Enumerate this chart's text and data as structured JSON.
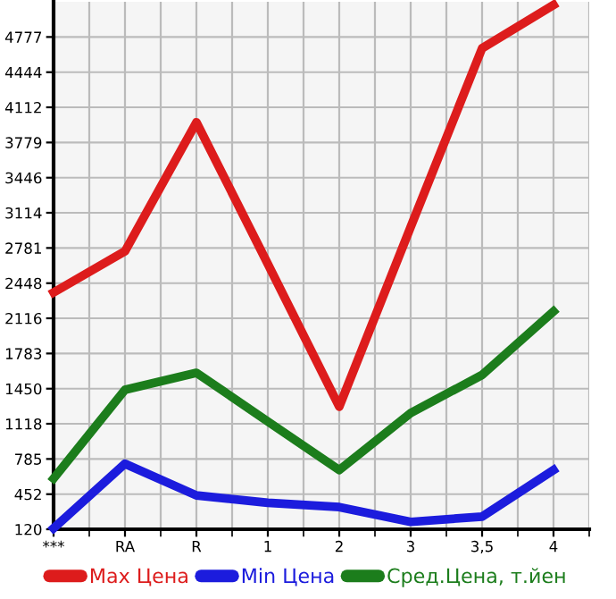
{
  "chart_data": {
    "type": "line",
    "categories": [
      "***",
      "RA",
      "R",
      "1",
      "2",
      "3",
      "3,5",
      "4"
    ],
    "series": [
      {
        "name": "Max Цена",
        "color": "#dd1c1c",
        "values": [
          2360,
          2750,
          3970,
          2630,
          1280,
          2980,
          4670,
          5080
        ]
      },
      {
        "name": "Min Цена",
        "color": "#1c1cdd",
        "values": [
          130,
          740,
          440,
          370,
          330,
          190,
          240,
          680
        ]
      },
      {
        "name": "Сред.Цена, т.йен",
        "color": "#1c7d1c",
        "values": [
          600,
          1440,
          1600,
          1140,
          680,
          1220,
          1580,
          2180
        ]
      }
    ],
    "ylim": [
      120,
      5110
    ],
    "yticks": [
      120,
      452,
      785,
      1118,
      1450,
      1783,
      2116,
      2448,
      2781,
      3114,
      3446,
      3779,
      4112,
      4444,
      4777
    ],
    "grid": true,
    "legend": "bottom",
    "marker": "none",
    "line_style": "solid"
  }
}
